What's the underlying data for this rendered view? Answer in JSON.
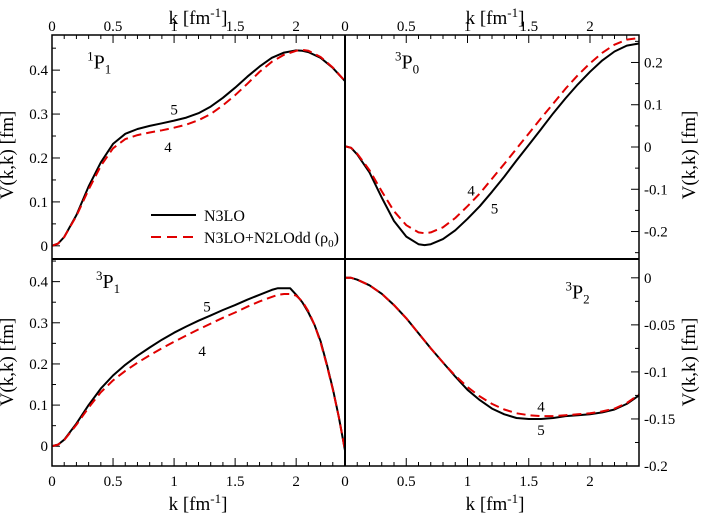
{
  "chart_data": {
    "type": "line",
    "colors": {
      "n3lo": "#000000",
      "n3lo_n2lodd": "#e00000"
    },
    "xlabel_main": "k [fm",
    "xlabel_sup": "-1",
    "xlabel_close": "]",
    "ylabel": "V(k,k) [fm]",
    "legend": {
      "placement": "inside top-left panel, lower middle",
      "entries": [
        {
          "name": "N3LO",
          "style": "solid",
          "color": "#000000"
        },
        {
          "name": "N3LO+N2LOdd (",
          "sym": "ρ",
          "sub": "0",
          "close": ")",
          "style": "dashed",
          "color": "#e00000"
        }
      ]
    },
    "panels": [
      {
        "id": "1P1",
        "label_sup": "1",
        "label_main": "P",
        "label_sub": "1",
        "xlim": [
          0,
          2.4
        ],
        "ylim": [
          -0.03,
          0.48
        ],
        "xticks": [
          0,
          0.5,
          1,
          1.5,
          2
        ],
        "xticklabels": [
          "0",
          "0.5",
          "1",
          "1.5",
          "2"
        ],
        "yticks": [
          0,
          0.1,
          0.2,
          0.3,
          0.4
        ],
        "yticklabels": [
          "0",
          "0.1",
          "0.2",
          "0.3",
          "0.4"
        ],
        "series": [
          {
            "name": "N3LO",
            "x": [
              0,
              0.05,
              0.1,
              0.2,
              0.3,
              0.4,
              0.5,
              0.6,
              0.7,
              0.8,
              0.9,
              1.0,
              1.1,
              1.2,
              1.3,
              1.4,
              1.5,
              1.6,
              1.7,
              1.8,
              1.9,
              2.0,
              2.05,
              2.1,
              2.2,
              2.3,
              2.4
            ],
            "y": [
              0,
              0.005,
              0.02,
              0.07,
              0.135,
              0.19,
              0.232,
              0.255,
              0.266,
              0.273,
              0.279,
              0.285,
              0.292,
              0.302,
              0.317,
              0.337,
              0.36,
              0.385,
              0.408,
              0.428,
              0.44,
              0.445,
              0.444,
              0.441,
              0.428,
              0.405,
              0.375
            ]
          },
          {
            "name": "N3LO+N2LOdd (rho0)",
            "x": [
              0,
              0.05,
              0.1,
              0.2,
              0.3,
              0.4,
              0.5,
              0.6,
              0.7,
              0.8,
              0.9,
              1.0,
              1.1,
              1.2,
              1.3,
              1.4,
              1.5,
              1.6,
              1.7,
              1.8,
              1.9,
              2.0,
              2.05,
              2.1,
              2.2,
              2.3,
              2.4
            ],
            "y": [
              0,
              0.005,
              0.02,
              0.068,
              0.128,
              0.182,
              0.222,
              0.243,
              0.252,
              0.258,
              0.263,
              0.269,
              0.276,
              0.286,
              0.3,
              0.32,
              0.343,
              0.369,
              0.396,
              0.419,
              0.435,
              0.444,
              0.446,
              0.444,
              0.43,
              0.406,
              0.375
            ]
          }
        ],
        "annotations": [
          {
            "text": "5",
            "x": 1.0,
            "y": 0.31
          },
          {
            "text": "4",
            "x": 0.95,
            "y": 0.225
          }
        ]
      },
      {
        "id": "3P0",
        "label_sup": "3",
        "label_main": "P",
        "label_sub": "0",
        "xlim": [
          0,
          2.4
        ],
        "ylim": [
          -0.265,
          0.265
        ],
        "xticks": [
          0,
          0.5,
          1,
          1.5,
          2
        ],
        "xticklabels": [
          "0",
          "0.5",
          "1",
          "1.5",
          "2"
        ],
        "yticks": [
          -0.2,
          -0.1,
          0,
          0.1,
          0.2
        ],
        "yticklabels": [
          "-0.2",
          "-0.1",
          "0",
          "0.1",
          "0.2"
        ],
        "series": [
          {
            "name": "N3LO",
            "x": [
              0,
              0.05,
              0.1,
              0.2,
              0.3,
              0.4,
              0.5,
              0.6,
              0.65,
              0.7,
              0.8,
              0.9,
              1.0,
              1.1,
              1.2,
              1.3,
              1.4,
              1.5,
              1.6,
              1.7,
              1.8,
              1.9,
              2.0,
              2.1,
              2.2,
              2.3,
              2.4
            ],
            "y": [
              0.002,
              -0.002,
              -0.018,
              -0.06,
              -0.12,
              -0.175,
              -0.212,
              -0.23,
              -0.232,
              -0.23,
              -0.218,
              -0.197,
              -0.17,
              -0.14,
              -0.106,
              -0.07,
              -0.032,
              0.005,
              0.042,
              0.08,
              0.115,
              0.148,
              0.178,
              0.205,
              0.226,
              0.24,
              0.245
            ]
          },
          {
            "name": "N3LO+N2LOdd (rho0)",
            "x": [
              0,
              0.05,
              0.1,
              0.2,
              0.3,
              0.4,
              0.5,
              0.6,
              0.65,
              0.7,
              0.8,
              0.9,
              1.0,
              1.1,
              1.2,
              1.3,
              1.4,
              1.5,
              1.6,
              1.7,
              1.8,
              1.9,
              2.0,
              2.1,
              2.2,
              2.3,
              2.4
            ],
            "y": [
              0.002,
              -0.002,
              -0.016,
              -0.055,
              -0.105,
              -0.152,
              -0.185,
              -0.202,
              -0.204,
              -0.202,
              -0.19,
              -0.168,
              -0.14,
              -0.11,
              -0.075,
              -0.04,
              -0.004,
              0.032,
              0.068,
              0.103,
              0.138,
              0.17,
              0.198,
              0.223,
              0.242,
              0.254,
              0.258
            ]
          }
        ],
        "annotations": [
          {
            "text": "4",
            "x": 1.03,
            "y": -0.103
          },
          {
            "text": "5",
            "x": 1.22,
            "y": -0.145
          }
        ]
      },
      {
        "id": "3P1",
        "label_sup": "3",
        "label_main": "P",
        "label_sub": "1",
        "xlim": [
          0,
          2.4
        ],
        "ylim": [
          -0.048,
          0.455
        ],
        "xticks": [
          0,
          0.5,
          1,
          1.5,
          2
        ],
        "xticklabels": [
          "0",
          "0.5",
          "1",
          "1.5",
          "2"
        ],
        "yticks": [
          0,
          0.1,
          0.2,
          0.3,
          0.4
        ],
        "yticklabels": [
          "0",
          "0.1",
          "0.2",
          "0.3",
          "0.4"
        ],
        "series": [
          {
            "name": "N3LO",
            "x": [
              0,
              0.05,
              0.1,
              0.2,
              0.3,
              0.4,
              0.5,
              0.6,
              0.7,
              0.8,
              0.9,
              1.0,
              1.1,
              1.2,
              1.3,
              1.4,
              1.5,
              1.6,
              1.7,
              1.8,
              1.85,
              1.9,
              1.95,
              2.0,
              2.05,
              2.1,
              2.15,
              2.2,
              2.25,
              2.3,
              2.35,
              2.4
            ],
            "y": [
              0,
              0.004,
              0.016,
              0.055,
              0.1,
              0.14,
              0.172,
              0.198,
              0.22,
              0.24,
              0.259,
              0.276,
              0.291,
              0.305,
              0.318,
              0.331,
              0.343,
              0.356,
              0.368,
              0.38,
              0.384,
              0.384,
              0.384,
              0.368,
              0.35,
              0.325,
              0.295,
              0.255,
              0.2,
              0.14,
              0.07,
              -0.01
            ]
          },
          {
            "name": "N3LO+N2LOdd (rho0)",
            "x": [
              0,
              0.05,
              0.1,
              0.2,
              0.3,
              0.4,
              0.5,
              0.6,
              0.7,
              0.8,
              0.9,
              1.0,
              1.1,
              1.2,
              1.3,
              1.4,
              1.5,
              1.6,
              1.7,
              1.8,
              1.85,
              1.9,
              1.95,
              2.0,
              2.05,
              2.1,
              2.15,
              2.2,
              2.25,
              2.3,
              2.35,
              2.4
            ],
            "y": [
              0,
              0.004,
              0.015,
              0.052,
              0.094,
              0.131,
              0.16,
              0.183,
              0.203,
              0.221,
              0.238,
              0.254,
              0.269,
              0.284,
              0.298,
              0.312,
              0.325,
              0.339,
              0.352,
              0.363,
              0.368,
              0.37,
              0.37,
              0.366,
              0.352,
              0.328,
              0.295,
              0.252,
              0.198,
              0.138,
              0.07,
              -0.01
            ]
          }
        ],
        "annotations": [
          {
            "text": "5",
            "x": 1.27,
            "y": 0.34
          },
          {
            "text": "4",
            "x": 1.23,
            "y": 0.232
          }
        ]
      },
      {
        "id": "3P2",
        "label_sup": "3",
        "label_main": "P",
        "label_sub": "2",
        "xlim": [
          0,
          2.4
        ],
        "ylim": [
          -0.2,
          0.02
        ],
        "xticks": [
          0,
          0.5,
          1,
          1.5,
          2
        ],
        "xticklabels": [
          "0",
          "0.5",
          "1",
          "1.5",
          "2"
        ],
        "yticks": [
          -0.2,
          -0.15,
          -0.1,
          -0.05,
          0
        ],
        "yticklabels": [
          "-0.2",
          "-0.15",
          "-0.1",
          "-0.05",
          "0"
        ],
        "series": [
          {
            "name": "N3LO",
            "x": [
              0,
              0.05,
              0.1,
              0.2,
              0.3,
              0.4,
              0.5,
              0.6,
              0.7,
              0.8,
              0.9,
              1.0,
              1.1,
              1.2,
              1.3,
              1.4,
              1.5,
              1.6,
              1.7,
              1.8,
              1.9,
              2.0,
              2.1,
              2.2,
              2.3,
              2.4
            ],
            "y": [
              0,
              0,
              -0.002,
              -0.008,
              -0.017,
              -0.029,
              -0.043,
              -0.059,
              -0.075,
              -0.09,
              -0.105,
              -0.119,
              -0.13,
              -0.139,
              -0.145,
              -0.149,
              -0.15,
              -0.15,
              -0.149,
              -0.147,
              -0.146,
              -0.145,
              -0.143,
              -0.14,
              -0.134,
              -0.125
            ]
          },
          {
            "name": "N3LO+N2LOdd (rho0)",
            "x": [
              0,
              0.05,
              0.1,
              0.2,
              0.3,
              0.4,
              0.5,
              0.6,
              0.7,
              0.8,
              0.9,
              1.0,
              1.1,
              1.2,
              1.3,
              1.4,
              1.5,
              1.6,
              1.7,
              1.8,
              1.9,
              2.0,
              2.1,
              2.2,
              2.3,
              2.4
            ],
            "y": [
              0,
              0,
              -0.002,
              -0.008,
              -0.017,
              -0.029,
              -0.043,
              -0.059,
              -0.075,
              -0.09,
              -0.104,
              -0.116,
              -0.126,
              -0.134,
              -0.14,
              -0.144,
              -0.146,
              -0.147,
              -0.147,
              -0.146,
              -0.145,
              -0.144,
              -0.142,
              -0.139,
              -0.133,
              -0.124
            ]
          }
        ],
        "annotations": [
          {
            "text": "4",
            "x": 1.6,
            "y": -0.137
          },
          {
            "text": "5",
            "x": 1.6,
            "y": -0.162
          }
        ]
      }
    ]
  }
}
